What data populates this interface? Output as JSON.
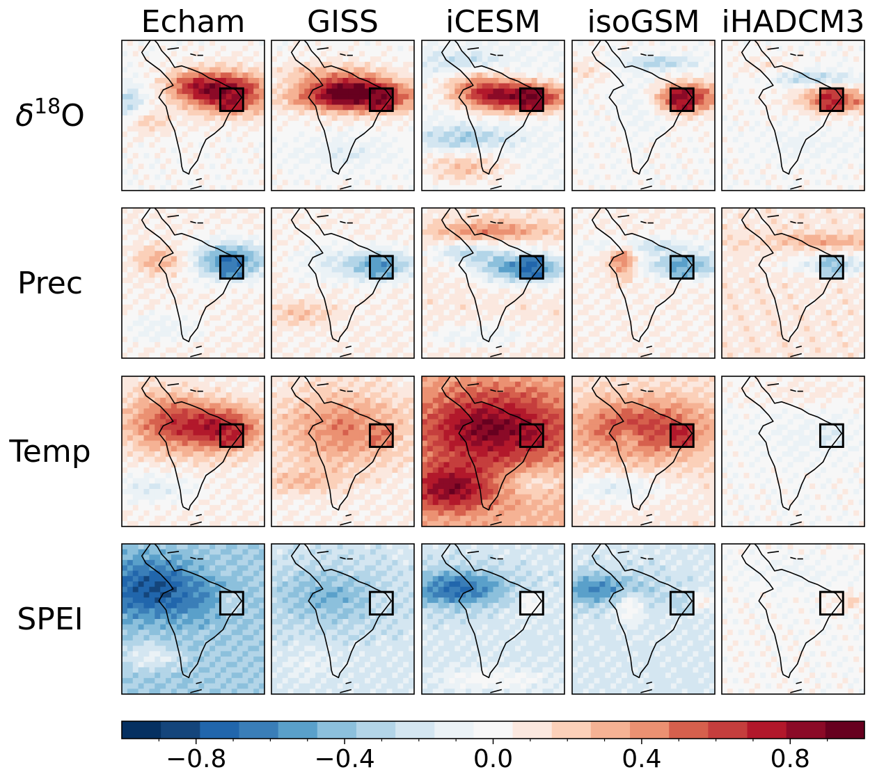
{
  "chart_data": {
    "type": "heatmap",
    "columns": [
      "Echam",
      "GISS",
      "iCESM",
      "isoGSM",
      "iHADCM3"
    ],
    "rows": [
      {
        "label_main": "δ",
        "label_sup": "18",
        "label_end": "O"
      },
      {
        "label_main": "Prec",
        "label_sup": "",
        "label_end": ""
      },
      {
        "label_main": "Temp",
        "label_sup": "",
        "label_end": ""
      },
      {
        "label_main": "SPEI",
        "label_sup": "",
        "label_end": ""
      }
    ],
    "colorbar": {
      "range": [
        -1.0,
        1.0
      ],
      "levels": 19,
      "tick_values": [
        -0.8,
        -0.4,
        0.0,
        0.4,
        0.8
      ],
      "tick_labels": [
        "−0.8",
        "−0.4",
        "0.0",
        "0.4",
        "0.8"
      ],
      "colors": [
        "#053061",
        "#14457b",
        "#2166ac",
        "#3a7eb8",
        "#5aa0ca",
        "#8cc0dc",
        "#b3d5e8",
        "#d4e6f1",
        "#ebf2f6",
        "#f7f7f7",
        "#fbe8df",
        "#fbd0b9",
        "#f5b294",
        "#eb9172",
        "#d6604d",
        "#c53e3d",
        "#b2182b",
        "#8b0a27",
        "#67001f"
      ]
    },
    "panels": [
      [
        {
          "bg": 0.0,
          "box": 0.85,
          "blobs": [
            {
              "x": 0.75,
              "y": 0.35,
              "rx": 0.3,
              "ry": 0.14,
              "v": 0.8
            },
            {
              "x": 0.5,
              "y": 0.3,
              "rx": 0.2,
              "ry": 0.1,
              "v": 0.4
            },
            {
              "x": 0.05,
              "y": 0.4,
              "rx": 0.1,
              "ry": 0.1,
              "v": -0.3
            },
            {
              "x": 0.2,
              "y": 0.55,
              "rx": 0.15,
              "ry": 0.08,
              "v": 0.2
            }
          ]
        },
        {
          "bg": 0.0,
          "box": 0.9,
          "blobs": [
            {
              "x": 0.6,
              "y": 0.38,
              "rx": 0.45,
              "ry": 0.1,
              "v": 0.75
            },
            {
              "x": 0.55,
              "y": 0.3,
              "rx": 0.3,
              "ry": 0.12,
              "v": 0.5
            },
            {
              "x": 0.2,
              "y": 0.2,
              "rx": 0.2,
              "ry": 0.08,
              "v": 0.15
            },
            {
              "x": 0.5,
              "y": 0.75,
              "rx": 0.3,
              "ry": 0.1,
              "v": -0.15
            }
          ]
        },
        {
          "bg": -0.05,
          "box": 0.95,
          "blobs": [
            {
              "x": 0.7,
              "y": 0.38,
              "rx": 0.35,
              "ry": 0.1,
              "v": 0.85
            },
            {
              "x": 0.4,
              "y": 0.3,
              "rx": 0.25,
              "ry": 0.12,
              "v": 0.4
            },
            {
              "x": 0.3,
              "y": 0.15,
              "rx": 0.3,
              "ry": 0.08,
              "v": -0.25
            },
            {
              "x": 0.3,
              "y": 0.65,
              "rx": 0.35,
              "ry": 0.08,
              "v": -0.3
            },
            {
              "x": 0.3,
              "y": 0.85,
              "rx": 0.3,
              "ry": 0.1,
              "v": 0.3
            }
          ]
        },
        {
          "bg": 0.0,
          "box": 0.9,
          "blobs": [
            {
              "x": 0.8,
              "y": 0.38,
              "rx": 0.25,
              "ry": 0.1,
              "v": 0.7
            },
            {
              "x": 0.5,
              "y": 0.4,
              "rx": 0.15,
              "ry": 0.15,
              "v": -0.2
            },
            {
              "x": 0.6,
              "y": 0.15,
              "rx": 0.3,
              "ry": 0.05,
              "v": -0.3
            },
            {
              "x": 0.1,
              "y": 0.2,
              "rx": 0.15,
              "ry": 0.08,
              "v": 0.15
            }
          ]
        },
        {
          "bg": 0.0,
          "box": 0.75,
          "blobs": [
            {
              "x": 0.8,
              "y": 0.4,
              "rx": 0.25,
              "ry": 0.08,
              "v": 0.6
            },
            {
              "x": 0.6,
              "y": 0.25,
              "rx": 0.35,
              "ry": 0.05,
              "v": -0.3
            },
            {
              "x": 0.3,
              "y": 0.2,
              "rx": 0.2,
              "ry": 0.08,
              "v": 0.15
            },
            {
              "x": 0.6,
              "y": 0.7,
              "rx": 0.3,
              "ry": 0.1,
              "v": -0.1
            }
          ]
        }
      ],
      [
        {
          "bg": 0.05,
          "box": -0.7,
          "blobs": [
            {
              "x": 0.75,
              "y": 0.35,
              "rx": 0.28,
              "ry": 0.12,
              "v": -0.65
            },
            {
              "x": 0.3,
              "y": 0.35,
              "rx": 0.2,
              "ry": 0.1,
              "v": 0.3
            },
            {
              "x": 0.3,
              "y": 0.8,
              "rx": 0.3,
              "ry": 0.1,
              "v": -0.15
            }
          ]
        },
        {
          "bg": 0.05,
          "box": -0.55,
          "blobs": [
            {
              "x": 0.75,
              "y": 0.38,
              "rx": 0.25,
              "ry": 0.1,
              "v": -0.55
            },
            {
              "x": 0.35,
              "y": 0.35,
              "rx": 0.2,
              "ry": 0.15,
              "v": -0.15
            },
            {
              "x": 0.2,
              "y": 0.7,
              "rx": 0.25,
              "ry": 0.08,
              "v": 0.2
            }
          ]
        },
        {
          "bg": 0.1,
          "box": -0.75,
          "blobs": [
            {
              "x": 0.72,
              "y": 0.4,
              "rx": 0.32,
              "ry": 0.1,
              "v": -0.7
            },
            {
              "x": 0.5,
              "y": 0.15,
              "rx": 0.4,
              "ry": 0.06,
              "v": 0.35
            },
            {
              "x": 0.3,
              "y": 0.3,
              "rx": 0.25,
              "ry": 0.06,
              "v": -0.35
            },
            {
              "x": 0.4,
              "y": 0.85,
              "rx": 0.4,
              "ry": 0.08,
              "v": -0.2
            }
          ]
        },
        {
          "bg": 0.05,
          "box": -0.55,
          "blobs": [
            {
              "x": 0.8,
              "y": 0.38,
              "rx": 0.3,
              "ry": 0.08,
              "v": -0.5
            },
            {
              "x": 0.35,
              "y": 0.35,
              "rx": 0.1,
              "ry": 0.12,
              "v": 0.45
            },
            {
              "x": 0.5,
              "y": 0.25,
              "rx": 0.4,
              "ry": 0.05,
              "v": -0.3
            }
          ]
        },
        {
          "bg": 0.1,
          "box": -0.45,
          "blobs": [
            {
              "x": 0.8,
              "y": 0.38,
              "rx": 0.3,
              "ry": 0.06,
              "v": -0.4
            },
            {
              "x": 0.7,
              "y": 0.22,
              "rx": 0.4,
              "ry": 0.05,
              "v": 0.25
            }
          ]
        }
      ],
      [
        {
          "bg": 0.05,
          "box": 0.75,
          "blobs": [
            {
              "x": 0.7,
              "y": 0.35,
              "rx": 0.3,
              "ry": 0.15,
              "v": 0.65
            },
            {
              "x": 0.3,
              "y": 0.3,
              "rx": 0.3,
              "ry": 0.2,
              "v": 0.45
            },
            {
              "x": 0.2,
              "y": 0.75,
              "rx": 0.3,
              "ry": 0.1,
              "v": -0.2
            }
          ]
        },
        {
          "bg": 0.05,
          "box": 0.55,
          "blobs": [
            {
              "x": 0.5,
              "y": 0.35,
              "rx": 0.45,
              "ry": 0.25,
              "v": 0.4
            },
            {
              "x": 0.2,
              "y": 0.7,
              "rx": 0.3,
              "ry": 0.08,
              "v": 0.2
            }
          ]
        },
        {
          "bg": 0.3,
          "box": 0.8,
          "blobs": [
            {
              "x": 0.5,
              "y": 0.35,
              "rx": 0.5,
              "ry": 0.25,
              "v": 0.6
            },
            {
              "x": 0.2,
              "y": 0.75,
              "rx": 0.3,
              "ry": 0.15,
              "v": 0.55
            },
            {
              "x": 0.8,
              "y": 0.7,
              "rx": 0.25,
              "ry": 0.1,
              "v": -0.2
            }
          ]
        },
        {
          "bg": 0.1,
          "box": 0.8,
          "blobs": [
            {
              "x": 0.5,
              "y": 0.35,
              "rx": 0.5,
              "ry": 0.2,
              "v": 0.55
            },
            {
              "x": 0.4,
              "y": 0.4,
              "rx": 0.1,
              "ry": 0.08,
              "v": -0.2
            },
            {
              "x": 0.3,
              "y": 0.75,
              "rx": 0.35,
              "ry": 0.1,
              "v": -0.25
            }
          ]
        },
        {
          "bg": 0.0,
          "box": -0.2,
          "blobs": [
            {
              "x": 0.6,
              "y": 0.4,
              "rx": 0.3,
              "ry": 0.15,
              "v": -0.1
            },
            {
              "x": 0.6,
              "y": 0.1,
              "rx": 0.4,
              "ry": 0.08,
              "v": 0.1
            }
          ]
        }
      ],
      [
        {
          "bg": -0.35,
          "box": -0.25,
          "blobs": [
            {
              "x": 0.2,
              "y": 0.3,
              "rx": 0.35,
              "ry": 0.2,
              "v": -0.45
            },
            {
              "x": 0.6,
              "y": 0.4,
              "rx": 0.25,
              "ry": 0.15,
              "v": -0.1
            },
            {
              "x": 0.2,
              "y": 0.75,
              "rx": 0.2,
              "ry": 0.08,
              "v": 0.25
            }
          ]
        },
        {
          "bg": -0.2,
          "box": -0.2,
          "blobs": [
            {
              "x": 0.4,
              "y": 0.35,
              "rx": 0.4,
              "ry": 0.2,
              "v": -0.25
            },
            {
              "x": 0.3,
              "y": 0.8,
              "rx": 0.2,
              "ry": 0.1,
              "v": 0.1
            }
          ]
        },
        {
          "bg": -0.2,
          "box": 0.05,
          "blobs": [
            {
              "x": 0.25,
              "y": 0.3,
              "rx": 0.35,
              "ry": 0.12,
              "v": -0.5
            },
            {
              "x": 0.7,
              "y": 0.4,
              "rx": 0.2,
              "ry": 0.1,
              "v": 0.05
            },
            {
              "x": 0.5,
              "y": 0.9,
              "rx": 0.4,
              "ry": 0.08,
              "v": 0.2
            }
          ]
        },
        {
          "bg": -0.2,
          "box": -0.35,
          "blobs": [
            {
              "x": 0.2,
              "y": 0.3,
              "rx": 0.35,
              "ry": 0.1,
              "v": -0.4
            },
            {
              "x": 0.4,
              "y": 0.4,
              "rx": 0.1,
              "ry": 0.12,
              "v": 0.3
            },
            {
              "x": 0.9,
              "y": 0.38,
              "rx": 0.1,
              "ry": 0.06,
              "v": 0.3
            }
          ]
        },
        {
          "bg": 0.0,
          "box": 0.05,
          "blobs": [
            {
              "x": 0.9,
              "y": 0.38,
              "rx": 0.1,
              "ry": 0.05,
              "v": 0.2
            },
            {
              "x": 0.5,
              "y": 0.2,
              "rx": 0.3,
              "ry": 0.08,
              "v": -0.1
            }
          ]
        }
      ]
    ]
  }
}
